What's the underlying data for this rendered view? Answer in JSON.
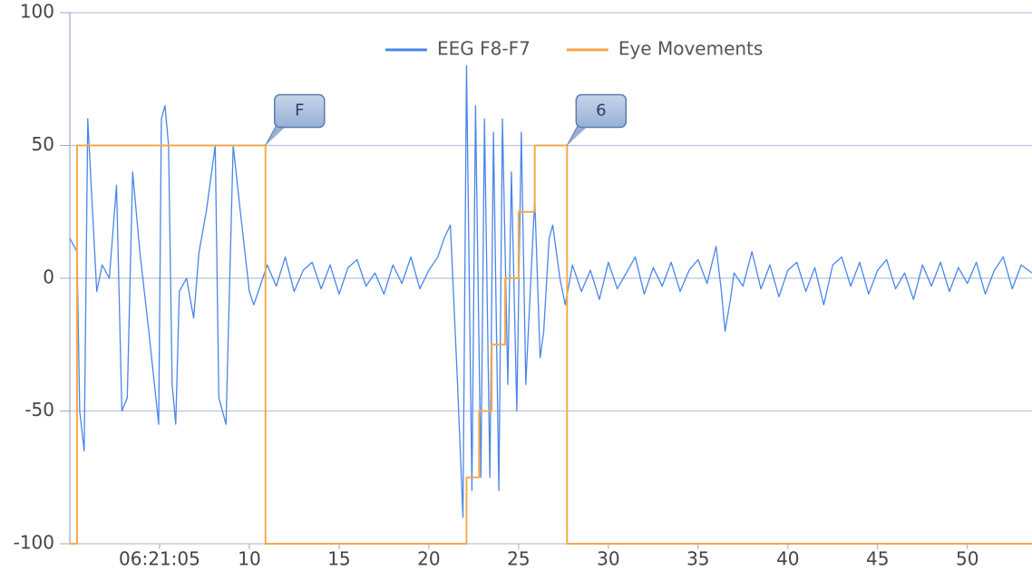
{
  "chart_data": {
    "type": "line",
    "xlim": [
      0,
      53.6
    ],
    "ylim": [
      -100,
      100
    ],
    "xticks": [
      {
        "value": 5,
        "label": "06:21:05"
      },
      10,
      15,
      20,
      25,
      30,
      35,
      40,
      45,
      50
    ],
    "yticks": [
      -100,
      -50,
      0,
      50,
      100
    ],
    "grid": true,
    "legend": "top",
    "series": [
      {
        "name": "EEG F8-F7",
        "color": "#4a86e8",
        "x": [
          0,
          0.4,
          0.55,
          0.8,
          1.0,
          1.15,
          1.5,
          1.8,
          2.2,
          2.6,
          2.9,
          3.2,
          3.5,
          3.9,
          4.4,
          4.95,
          5.1,
          5.3,
          5.5,
          5.7,
          5.9,
          6.1,
          6.5,
          6.9,
          7.2,
          7.6,
          8.1,
          8.3,
          8.7,
          9.1,
          9.5,
          10.0,
          10.25,
          10.75,
          11,
          11.5,
          12,
          12.5,
          13,
          13.5,
          14,
          14.5,
          15,
          15.5,
          16,
          16.5,
          17,
          17.5,
          18,
          18.5,
          19,
          19.5,
          20,
          20.5,
          20.85,
          21.2,
          21.6,
          21.9,
          22.1,
          22.4,
          22.6,
          22.9,
          23.1,
          23.4,
          23.6,
          23.9,
          24.1,
          24.4,
          24.6,
          24.9,
          25.15,
          25.4,
          25.65,
          25.9,
          26.2,
          26.4,
          26.7,
          26.9,
          27.3,
          27.6,
          28,
          28.5,
          29,
          29.5,
          30,
          30.5,
          31,
          31.5,
          32,
          32.5,
          33,
          33.5,
          34,
          34.5,
          35,
          35.5,
          36,
          36.3,
          36.5,
          36.8,
          37,
          37.5,
          38,
          38.5,
          39,
          39.5,
          40,
          40.5,
          41,
          41.5,
          42,
          42.5,
          43,
          43.5,
          44,
          44.5,
          45,
          45.5,
          46,
          46.5,
          47,
          47.5,
          48,
          48.5,
          49,
          49.5,
          50,
          50.5,
          51,
          51.5,
          52,
          52.5,
          53,
          53.6
        ],
        "values": [
          15,
          10,
          -50,
          -65,
          60,
          40,
          -5,
          5,
          0,
          35,
          -50,
          -45,
          40,
          10,
          -20,
          -55,
          60,
          65,
          50,
          -40,
          -55,
          -5,
          0,
          -15,
          10,
          25,
          50,
          -45,
          -55,
          50,
          25,
          -5,
          -10,
          0,
          5,
          -3,
          8,
          -5,
          3,
          6,
          -4,
          5,
          -6,
          4,
          7,
          -3,
          2,
          -6,
          5,
          -2,
          8,
          -4,
          3,
          8,
          15,
          20,
          -40,
          -90,
          80,
          -80,
          65,
          -75,
          60,
          -75,
          55,
          -80,
          60,
          -40,
          40,
          -50,
          55,
          -40,
          -5,
          30,
          -30,
          -20,
          15,
          20,
          0,
          -10,
          5,
          -5,
          3,
          -8,
          6,
          -4,
          2,
          8,
          -6,
          4,
          -3,
          6,
          -5,
          3,
          7,
          -2,
          12,
          -5,
          -20,
          -8,
          2,
          -3,
          10,
          -4,
          5,
          -7,
          3,
          6,
          -5,
          4,
          -10,
          5,
          8,
          -3,
          6,
          -6,
          3,
          7,
          -4,
          2,
          -8,
          5,
          -3,
          6,
          -5,
          4,
          -2,
          6,
          -6,
          3,
          8,
          -4,
          5,
          2
        ]
      },
      {
        "name": "Eye Movements",
        "color": "#f5a94a",
        "x": [
          0,
          0.4,
          0.4,
          10.9,
          10.9,
          22.1,
          22.1,
          22.8,
          22.8,
          23.5,
          23.5,
          24.25,
          24.25,
          25.0,
          25.0,
          25.9,
          25.9,
          27.7,
          27.7,
          53.6
        ],
        "values": [
          -100,
          -100,
          50,
          50,
          -100,
          -100,
          -75,
          -75,
          -50,
          -50,
          -25,
          -25,
          0,
          0,
          25,
          25,
          50,
          50,
          -100,
          -100
        ]
      }
    ],
    "annotations": [
      {
        "text": "F",
        "x": 10.9,
        "y": 50
      },
      {
        "text": "6",
        "x": 27.7,
        "y": 50
      }
    ]
  }
}
